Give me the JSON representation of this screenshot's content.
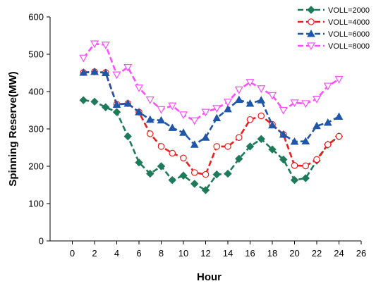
{
  "chart_data": {
    "type": "line",
    "title": "",
    "xlabel": "Hour",
    "ylabel": "Spinning Reserve(MW)",
    "xlim": [
      -2,
      26
    ],
    "ylim": [
      0,
      600
    ],
    "xticks": [
      0,
      2,
      4,
      6,
      8,
      10,
      12,
      14,
      16,
      18,
      20,
      22,
      24,
      26
    ],
    "yticks": [
      0,
      100,
      200,
      300,
      400,
      500,
      600
    ],
    "grid": false,
    "legend_position": "top-right",
    "x": [
      1,
      2,
      3,
      4,
      5,
      6,
      7,
      8,
      9,
      10,
      11,
      12,
      13,
      14,
      15,
      16,
      17,
      18,
      19,
      20,
      21,
      22,
      23,
      24
    ],
    "series": [
      {
        "name": "VOLL=2000",
        "color": "#1e7b5a",
        "marker": "diamond",
        "values": [
          377,
          373,
          358,
          345,
          280,
          210,
          180,
          200,
          163,
          175,
          153,
          136,
          178,
          180,
          220,
          253,
          273,
          245,
          218,
          163,
          168,
          215,
          258,
          280
        ]
      },
      {
        "name": "VOLL=4000",
        "color": "#ee1c1c",
        "marker": "circle-open",
        "values": [
          451,
          453,
          451,
          366,
          368,
          345,
          287,
          253,
          235,
          222,
          183,
          178,
          253,
          253,
          277,
          325,
          335,
          312,
          285,
          202,
          201,
          218,
          258,
          280
        ]
      },
      {
        "name": "VOLL=6000",
        "color": "#1f56a8",
        "marker": "triangle-up",
        "values": [
          451,
          453,
          450,
          365,
          368,
          345,
          325,
          323,
          303,
          290,
          258,
          277,
          329,
          353,
          378,
          368,
          377,
          310,
          285,
          266,
          267,
          308,
          317,
          333
        ]
      },
      {
        "name": "VOLL=8000",
        "color": "#ff4dff",
        "marker": "triangle-down-open",
        "values": [
          490,
          528,
          525,
          445,
          465,
          410,
          378,
          352,
          362,
          338,
          322,
          345,
          355,
          372,
          405,
          425,
          408,
          390,
          350,
          370,
          368,
          380,
          415,
          433
        ]
      }
    ]
  }
}
